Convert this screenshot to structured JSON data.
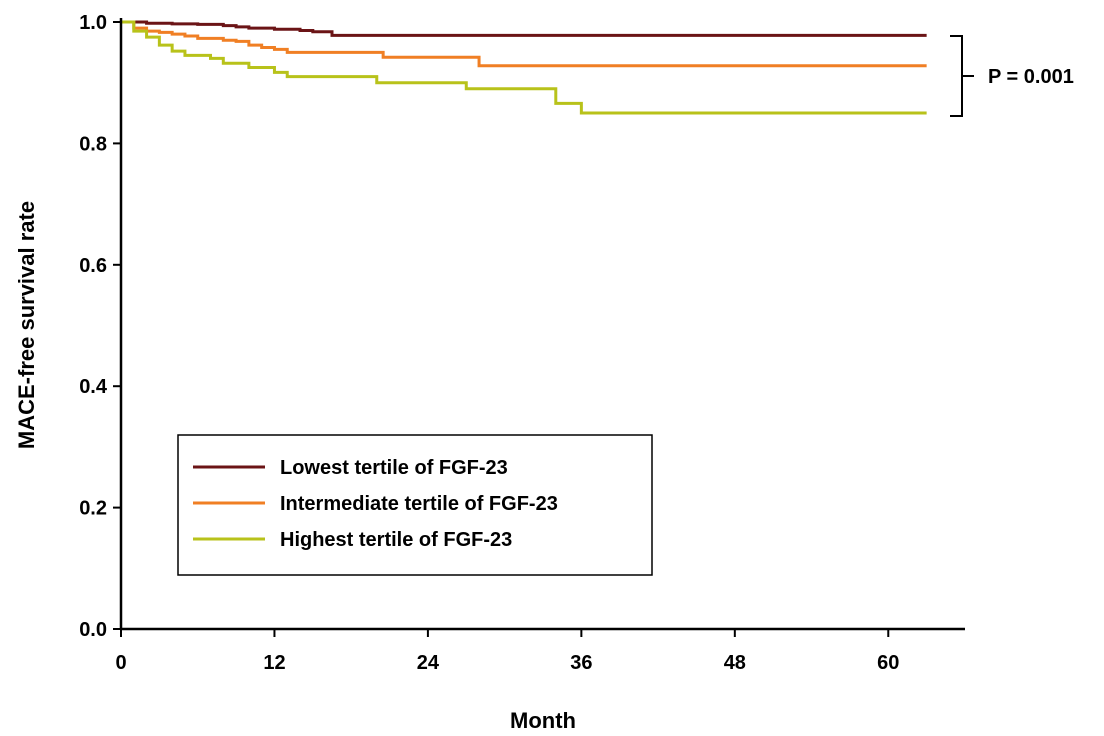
{
  "chart_data": {
    "type": "line",
    "step": true,
    "xlabel": "Month",
    "ylabel": "MACE-free survival rate",
    "xlim": [
      0,
      66
    ],
    "ylim": [
      0,
      1
    ],
    "xticks": [
      0,
      12,
      24,
      36,
      48,
      60
    ],
    "yticks": [
      0.0,
      0.2,
      0.4,
      0.6,
      0.8,
      1.0
    ],
    "xtick_labels": [
      "0",
      "12",
      "24",
      "36",
      "48",
      "60"
    ],
    "ytick_labels": [
      "0.0",
      "0.2",
      "0.4",
      "0.6",
      "0.8",
      "1.0"
    ],
    "legend_position": "lower-left",
    "series": [
      {
        "name": "Lowest tertile of FGF-23",
        "color": "#6b1416",
        "x": [
          0,
          2,
          4,
          6,
          8,
          9,
          10,
          12,
          14,
          15,
          16.5,
          63
        ],
        "y": [
          1.0,
          0.998,
          0.997,
          0.996,
          0.994,
          0.992,
          0.99,
          0.988,
          0.986,
          0.984,
          0.978,
          0.978
        ]
      },
      {
        "name": "Intermediate tertile of FGF-23",
        "color": "#f07f24",
        "x": [
          0,
          1,
          2,
          3,
          4,
          5,
          6,
          8,
          9,
          10,
          11,
          12,
          13,
          20.5,
          28,
          63
        ],
        "y": [
          1.0,
          0.99,
          0.985,
          0.983,
          0.98,
          0.977,
          0.973,
          0.97,
          0.968,
          0.962,
          0.958,
          0.955,
          0.95,
          0.942,
          0.928,
          0.928
        ]
      },
      {
        "name": "Highest tertile of FGF-23",
        "color": "#b8c21a",
        "x": [
          0,
          1,
          2,
          3,
          4,
          5,
          7,
          8,
          10,
          12,
          13,
          20,
          27,
          34,
          36,
          63
        ],
        "y": [
          1.0,
          0.985,
          0.975,
          0.962,
          0.952,
          0.945,
          0.94,
          0.932,
          0.925,
          0.917,
          0.91,
          0.9,
          0.89,
          0.866,
          0.85,
          0.85
        ]
      }
    ],
    "annotations": [
      {
        "text": "P = 0.001"
      }
    ]
  }
}
